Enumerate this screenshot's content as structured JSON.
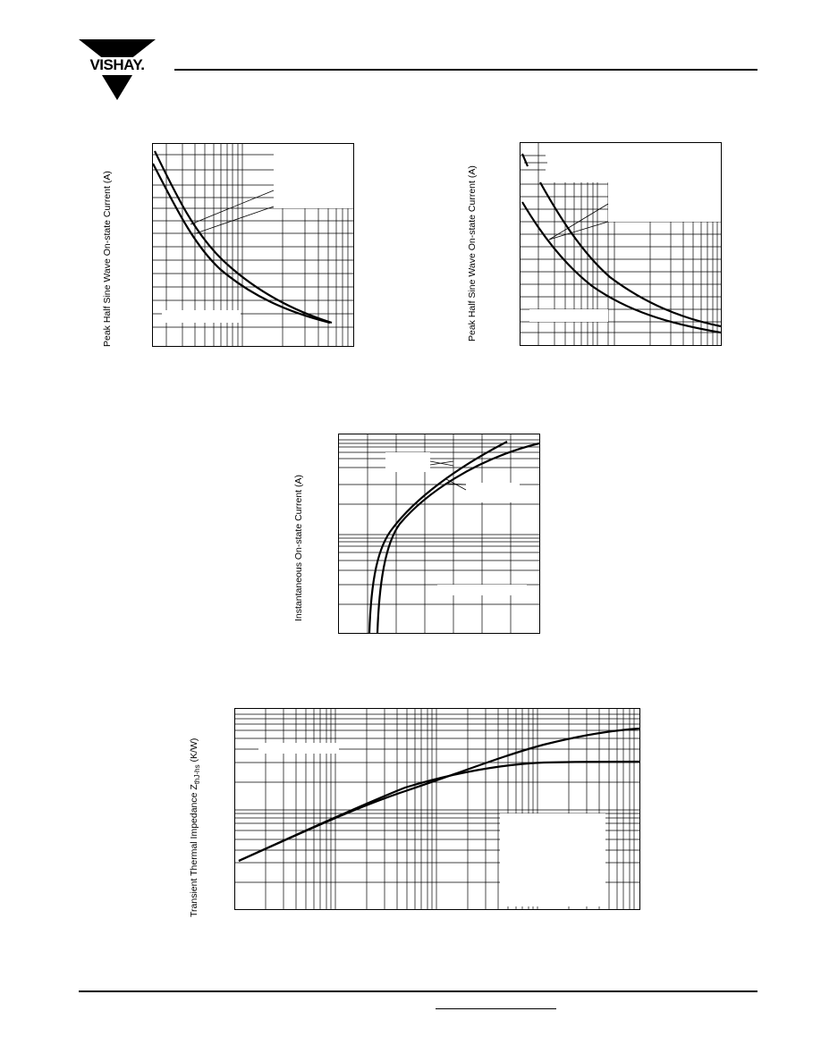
{
  "logo": {
    "text": "VISHAY."
  },
  "charts": [
    {
      "id": "tl",
      "ylabel": "Peak Half Sine Wave On-state Current (A)"
    },
    {
      "id": "tr",
      "ylabel": "Peak Half Sine Wave On-state Current (A)"
    },
    {
      "id": "mid",
      "ylabel": "Instantaneous On-state Current (A)"
    },
    {
      "id": "bottom",
      "ylabel_main": "Transient Thermal Impedance Z",
      "ylabel_sub": "thJ-hs",
      "ylabel_unit": " (K/W)"
    }
  ],
  "colors": {
    "ink": "#000000",
    "paper": "#ffffff"
  }
}
